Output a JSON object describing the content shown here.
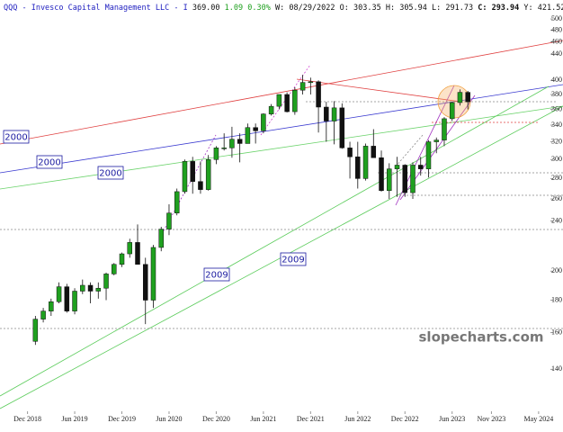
{
  "header": {
    "symbol": "QQQ - Invesco Capital Management LLC - I",
    "last": "369.00",
    "change": "1.09",
    "change_pct": "0.30%",
    "fields": [
      "W: 08/29/2022",
      "O: 303.35",
      "H: 305.94",
      "L: 291.73"
    ],
    "close": "C: 293.94",
    "year": "Y: 421.52"
  },
  "watermark": "slopecharts.com",
  "chart_data": {
    "type": "candlestick",
    "log_scale": true,
    "up_color": "#1fa01f",
    "down_color": "#111111",
    "x": [
      "2019-01",
      "2019-02",
      "2019-03",
      "2019-04",
      "2019-05",
      "2019-06",
      "2019-07",
      "2019-08",
      "2019-09",
      "2019-10",
      "2019-11",
      "2019-12",
      "2020-01",
      "2020-02",
      "2020-03",
      "2020-04",
      "2020-05",
      "2020-06",
      "2020-07",
      "2020-08",
      "2020-09",
      "2020-10",
      "2020-11",
      "2020-12",
      "2021-01",
      "2021-02",
      "2021-03",
      "2021-04",
      "2021-05",
      "2021-06",
      "2021-07",
      "2021-08",
      "2021-09",
      "2021-10",
      "2021-11",
      "2021-12",
      "2022-01",
      "2022-02",
      "2022-03",
      "2022-04",
      "2022-05",
      "2022-06",
      "2022-07",
      "2022-08",
      "2022-09",
      "2022-10",
      "2022-11",
      "2022-12",
      "2023-01",
      "2023-02",
      "2023-03",
      "2023-04",
      "2023-05",
      "2023-06",
      "2023-07",
      "2023-08"
    ],
    "open": [
      155,
      168,
      173,
      179,
      189,
      173,
      186,
      190,
      186,
      188,
      198,
      205,
      213,
      222,
      205,
      180,
      218,
      233,
      247,
      267,
      298,
      277,
      269,
      300,
      313,
      313,
      323,
      318,
      337,
      333,
      354,
      364,
      380,
      357,
      386,
      397,
      398,
      363,
      345,
      362,
      313,
      303,
      280,
      315,
      302,
      268,
      290,
      294,
      266,
      294,
      290,
      320,
      322,
      348,
      369,
      383
    ],
    "high": [
      170,
      175,
      181,
      192,
      191,
      188,
      194,
      192,
      192,
      199,
      206,
      214,
      225,
      237,
      210,
      220,
      235,
      255,
      270,
      300,
      303,
      298,
      305,
      315,
      330,
      338,
      330,
      342,
      342,
      355,
      367,
      380,
      383,
      390,
      408,
      404,
      400,
      370,
      371,
      368,
      320,
      320,
      318,
      335,
      310,
      296,
      303,
      295,
      297,
      303,
      322,
      325,
      350,
      370,
      387,
      385
    ],
    "low": [
      153,
      166,
      170,
      178,
      172,
      171,
      184,
      178,
      181,
      180,
      197,
      203,
      210,
      205,
      165,
      175,
      215,
      228,
      245,
      265,
      265,
      265,
      268,
      295,
      310,
      302,
      297,
      318,
      318,
      330,
      352,
      360,
      356,
      353,
      380,
      380,
      331,
      320,
      317,
      312,
      280,
      270,
      278,
      302,
      267,
      260,
      262,
      262,
      260,
      283,
      281,
      307,
      315,
      345,
      365,
      360
    ],
    "close": [
      168,
      173,
      179,
      189,
      173,
      186,
      190,
      186,
      188,
      198,
      205,
      213,
      222,
      205,
      180,
      218,
      233,
      247,
      267,
      298,
      277,
      269,
      300,
      313,
      313,
      323,
      318,
      337,
      333,
      354,
      364,
      380,
      357,
      386,
      397,
      398,
      363,
      345,
      362,
      313,
      303,
      280,
      315,
      302,
      268,
      290,
      294,
      266,
      294,
      290,
      320,
      322,
      348,
      369,
      383,
      370
    ],
    "xlim": [
      "2018-09",
      "2024-07"
    ],
    "xticks": [
      {
        "value": "2018-12",
        "label": "Dec 2018"
      },
      {
        "value": "2019-06",
        "label": "Jun 2019"
      },
      {
        "value": "2019-12",
        "label": "Dec 2019"
      },
      {
        "value": "2020-06",
        "label": "Jun 2020"
      },
      {
        "value": "2020-12",
        "label": "Dec 2020"
      },
      {
        "value": "2021-06",
        "label": "Jun 2021"
      },
      {
        "value": "2021-12",
        "label": "Dec 2021"
      },
      {
        "value": "2022-06",
        "label": "Jun 2022"
      },
      {
        "value": "2022-12",
        "label": "Dec 2022"
      },
      {
        "value": "2023-06",
        "label": "Jun 2023"
      },
      {
        "value": "2023-11",
        "label": "Nov 2023"
      },
      {
        "value": "2024-05",
        "label": "May 2024"
      }
    ],
    "ylim": [
      121,
      510
    ],
    "yticks": [
      500,
      480,
      460,
      440,
      400,
      380,
      360,
      340,
      320,
      300,
      280,
      260,
      240,
      200,
      180,
      160,
      140
    ],
    "annotations": [
      "2000",
      "2000",
      "2000",
      "2009",
      "2009"
    ]
  }
}
